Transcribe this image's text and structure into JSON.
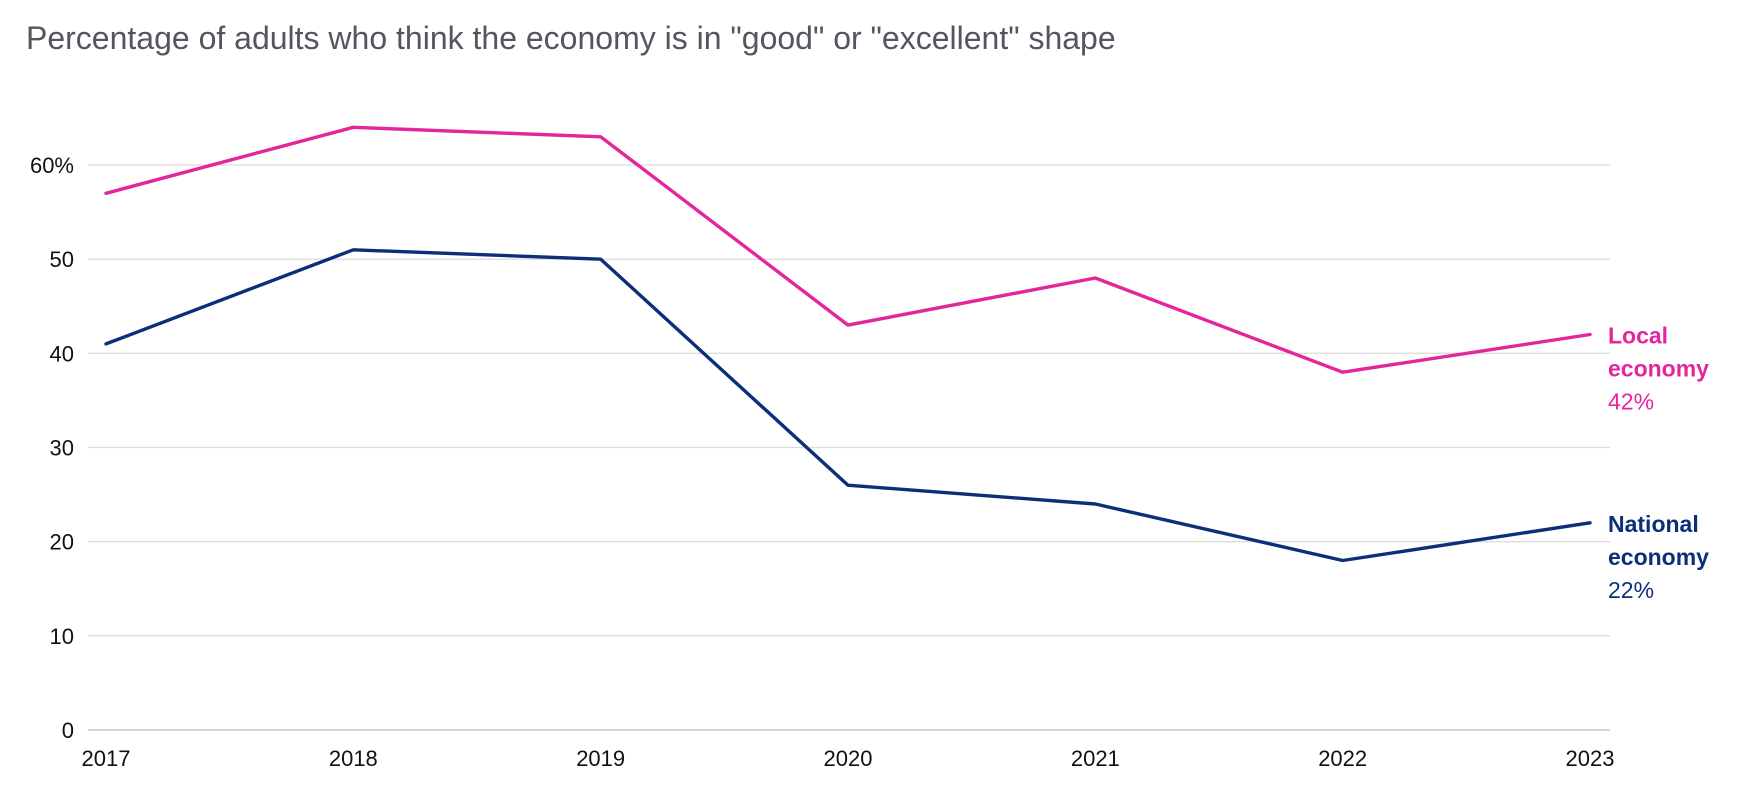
{
  "chart_data": {
    "type": "line",
    "title": "Percentage of adults who think the economy is in \"good\" or \"excellent\" shape",
    "xlabel": "",
    "ylabel": "",
    "x": [
      "2017",
      "2018",
      "2019",
      "2020",
      "2021",
      "2022",
      "2023"
    ],
    "ylim": [
      0,
      60
    ],
    "y_ticks": [
      0,
      10,
      20,
      30,
      40,
      50,
      60
    ],
    "y_tick_labels": [
      "0",
      "10",
      "20",
      "30",
      "40",
      "50",
      "60%"
    ],
    "grid": true,
    "legend": "direct labels at right end of lines",
    "series": [
      {
        "name_lines": [
          "Local",
          "economy"
        ],
        "end_label": "42%",
        "color": "#e3269b",
        "values": [
          57,
          64,
          63,
          43,
          48,
          38,
          42
        ]
      },
      {
        "name_lines": [
          "National",
          "economy"
        ],
        "end_label": "22%",
        "color": "#0c2f7a",
        "values": [
          41,
          51,
          50,
          26,
          24,
          18,
          22
        ]
      }
    ]
  }
}
